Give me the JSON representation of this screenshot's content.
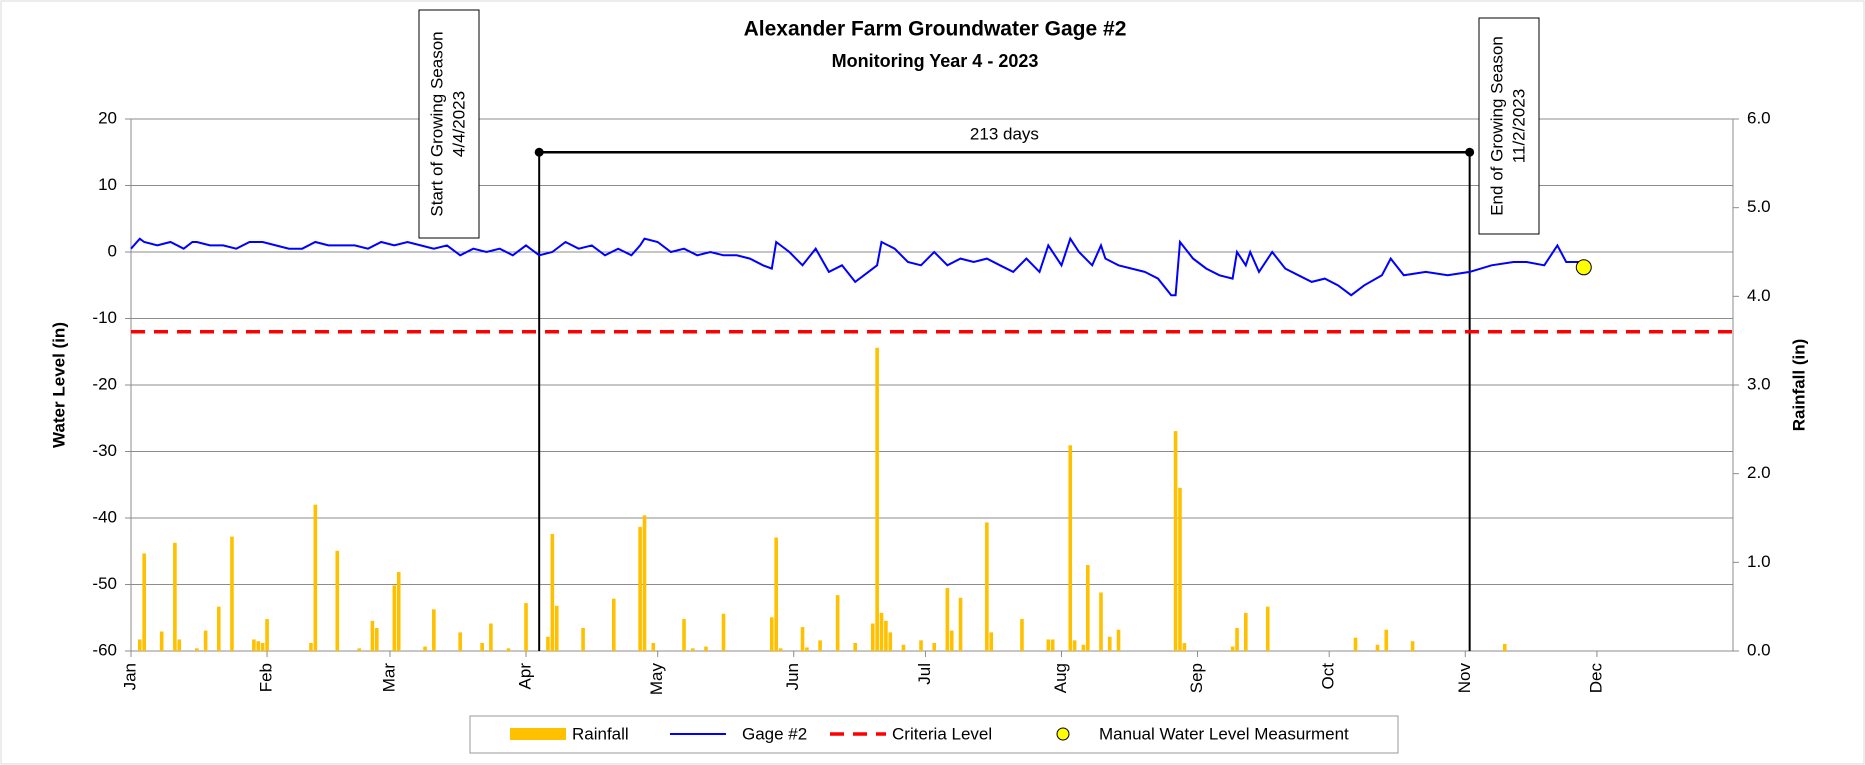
{
  "chart_data": {
    "type": "line",
    "title": "Alexander Farm Groundwater Gage #2",
    "subtitle": "Monitoring Year 4 - 2023",
    "y_label": "Water Level (in)",
    "y2_label": "Rainfall (in)",
    "xlim": [
      0,
      365
    ],
    "xticks": [
      {
        "value": 0,
        "label": "Jan"
      },
      {
        "value": 31,
        "label": "Feb"
      },
      {
        "value": 59,
        "label": "Mar"
      },
      {
        "value": 90,
        "label": "Apr"
      },
      {
        "value": 120,
        "label": "May"
      },
      {
        "value": 151,
        "label": "Jun"
      },
      {
        "value": 181,
        "label": "Jul"
      },
      {
        "value": 212,
        "label": "Aug"
      },
      {
        "value": 243,
        "label": "Sep"
      },
      {
        "value": 273,
        "label": "Oct"
      },
      {
        "value": 304,
        "label": "Nov"
      },
      {
        "value": 334,
        "label": "Dec"
      }
    ],
    "ylim": [
      -60,
      20
    ],
    "yticks": [
      -60,
      -50,
      -40,
      -30,
      -20,
      -10,
      0,
      10,
      20
    ],
    "y2lim": [
      0,
      6
    ],
    "y2ticks": [
      {
        "value": 0,
        "label": "0.0"
      },
      {
        "value": 1,
        "label": "1.0"
      },
      {
        "value": 2,
        "label": "2.0"
      },
      {
        "value": 3,
        "label": "3.0"
      },
      {
        "value": 4,
        "label": "4.0"
      },
      {
        "value": 5,
        "label": "5.0"
      },
      {
        "value": 6,
        "label": "6.0"
      }
    ],
    "grid": true,
    "series": [
      {
        "name": "Rainfall",
        "type": "bar",
        "axis": "y2",
        "color": "#ffc000",
        "x": [
          2,
          3,
          7,
          10,
          11,
          15,
          17,
          20,
          23,
          28,
          29,
          30,
          31,
          41,
          42,
          47,
          52,
          55,
          56,
          60,
          61,
          67,
          69,
          75,
          80,
          82,
          86,
          90,
          95,
          96,
          97,
          103,
          110,
          116,
          117,
          119,
          126,
          128,
          131,
          135,
          146,
          147,
          148,
          153,
          154,
          157,
          161,
          165,
          169,
          170,
          171,
          172,
          173,
          176,
          180,
          183,
          186,
          187,
          189,
          195,
          196,
          203,
          209,
          210,
          214,
          215,
          217,
          218,
          221,
          223,
          225,
          238,
          239,
          240,
          251,
          252,
          254,
          259,
          279,
          284,
          286,
          292,
          313
        ],
        "values": [
          0.13,
          1.1,
          0.22,
          1.22,
          0.13,
          0.03,
          0.23,
          0.5,
          1.29,
          0.13,
          0.11,
          0.09,
          0.36,
          0.09,
          1.65,
          1.13,
          0.03,
          0.34,
          0.26,
          0.74,
          0.89,
          0.05,
          0.47,
          0.21,
          0.09,
          0.31,
          0.03,
          0.54,
          0.16,
          1.32,
          0.51,
          0.26,
          0.59,
          1.4,
          1.53,
          0.09,
          0.36,
          0.03,
          0.05,
          0.42,
          0.38,
          1.28,
          0.03,
          0.27,
          0.04,
          0.12,
          0.63,
          0.09,
          0.31,
          3.42,
          0.43,
          0.34,
          0.21,
          0.07,
          0.12,
          0.09,
          0.71,
          0.23,
          0.6,
          1.45,
          0.21,
          0.36,
          0.13,
          0.13,
          2.32,
          0.12,
          0.07,
          0.97,
          0.66,
          0.16,
          0.24,
          2.48,
          1.84,
          0.09,
          0.05,
          0.26,
          0.43,
          0.5,
          0.15,
          0.07,
          0.24,
          0.11,
          0.08
        ]
      },
      {
        "name": "Gage #2",
        "type": "line",
        "color": "#0000ff",
        "x": [
          0,
          2,
          3,
          6,
          9,
          12,
          14,
          15,
          18,
          21,
          24,
          27,
          30,
          33,
          36,
          39,
          42,
          45,
          48,
          51,
          54,
          57,
          60,
          63,
          66,
          69,
          72,
          75,
          78,
          81,
          84,
          87,
          90,
          93,
          96,
          99,
          102,
          105,
          108,
          111,
          114,
          116,
          117,
          120,
          123,
          126,
          129,
          132,
          135,
          138,
          141,
          144,
          146,
          147,
          150,
          153,
          156,
          159,
          162,
          165,
          168,
          170,
          171,
          174,
          177,
          180,
          183,
          186,
          189,
          192,
          195,
          198,
          201,
          204,
          207,
          209,
          212,
          214,
          216,
          219,
          221,
          222,
          225,
          228,
          231,
          234,
          237,
          238,
          239,
          242,
          245,
          248,
          251,
          252,
          254,
          255,
          257,
          260,
          263,
          266,
          269,
          272,
          275,
          278,
          281,
          285,
          287,
          290,
          295,
          300,
          305,
          310,
          315,
          318,
          322,
          325,
          327,
          330
        ],
        "values": [
          0.5,
          2,
          1.5,
          1,
          1.5,
          0.5,
          1.5,
          1.5,
          1,
          1,
          0.5,
          1.5,
          1.5,
          1,
          0.5,
          0.5,
          1.5,
          1,
          1,
          1,
          0.5,
          1.5,
          1,
          1.5,
          1,
          0.5,
          1,
          -0.5,
          0.5,
          0,
          0.5,
          -0.5,
          1,
          -0.5,
          0,
          1.5,
          0.5,
          1,
          -0.5,
          0.5,
          -0.5,
          1,
          2,
          1.5,
          0,
          0.5,
          -0.5,
          0,
          -0.5,
          -0.5,
          -1,
          -2,
          -2.5,
          1.5,
          0,
          -2,
          0.5,
          -3,
          -2,
          -4.5,
          -3,
          -2,
          1.5,
          0.5,
          -1.5,
          -2,
          0,
          -2,
          -1,
          -1.5,
          -1,
          -2,
          -3,
          -1,
          -3,
          1,
          -2,
          2,
          0,
          -2,
          1,
          -1,
          -2,
          -2.5,
          -3,
          -4,
          -6.5,
          -6.5,
          1.5,
          -1,
          -2.5,
          -3.5,
          -4,
          0,
          -2,
          0,
          -3,
          0,
          -2.5,
          -3.5,
          -4.5,
          -4,
          -5,
          -6.5,
          -5,
          -3.5,
          -1,
          -3.5,
          -3,
          -3.5,
          -3,
          -2,
          -1.5,
          -1.5,
          -2,
          1,
          -1.5,
          -1.5
        ]
      },
      {
        "name": "Criteria Level",
        "type": "reference-line",
        "color": "#ff0000",
        "value": -12
      },
      {
        "name": "Manual Water Level Measurment",
        "type": "scatter",
        "color": "#ffff00",
        "x": [
          331
        ],
        "values": [
          -2.3
        ]
      }
    ],
    "annotations": [
      {
        "lines": [
          "Start of Growing Season",
          "4/4/2023"
        ],
        "x": 93
      },
      {
        "lines": [
          "End of Growing Season",
          "11/2/2023"
        ],
        "x": 305
      }
    ],
    "span": {
      "label": "213 days",
      "start": 93,
      "end": 305,
      "y": 15
    }
  }
}
